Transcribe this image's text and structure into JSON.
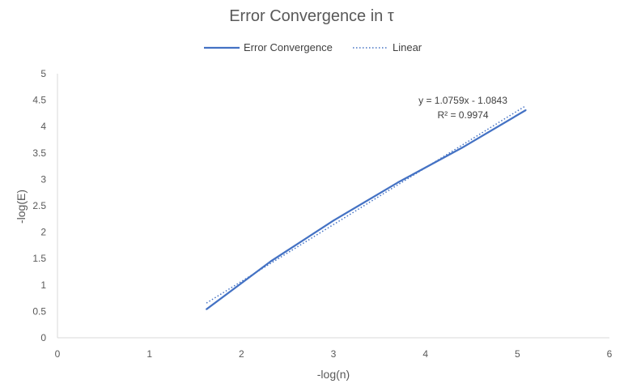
{
  "chart_data": {
    "type": "scatter",
    "title": "Error Convergence in τ",
    "xlabel": "-log(n)",
    "ylabel": "-log(E)",
    "xlim": [
      0,
      6
    ],
    "ylim": [
      0,
      5
    ],
    "xticks": [
      "0",
      "1",
      "2",
      "3",
      "4",
      "5",
      "6"
    ],
    "yticks": [
      "0",
      "0.5",
      "1",
      "1.5",
      "2",
      "2.5",
      "3",
      "3.5",
      "4",
      "4.5",
      "5"
    ],
    "grid": false,
    "legend_position": "top",
    "series": [
      {
        "name": "Error Convergence",
        "style": "solid-line",
        "color": "#4472C4",
        "x": [
          1.62,
          2.32,
          3.0,
          3.7,
          4.4,
          5.09
        ],
        "y": [
          0.54,
          1.45,
          2.22,
          2.94,
          3.6,
          4.31
        ]
      }
    ],
    "trendline": {
      "name": "Linear",
      "style": "dotted-line",
      "color": "#4472C4",
      "slope": 1.0759,
      "intercept": -1.0843,
      "x_range": [
        1.62,
        5.09
      ]
    },
    "annotations": {
      "equation": "y = 1.0759x - 1.0843",
      "r_squared": "R² = 0.9974"
    }
  }
}
